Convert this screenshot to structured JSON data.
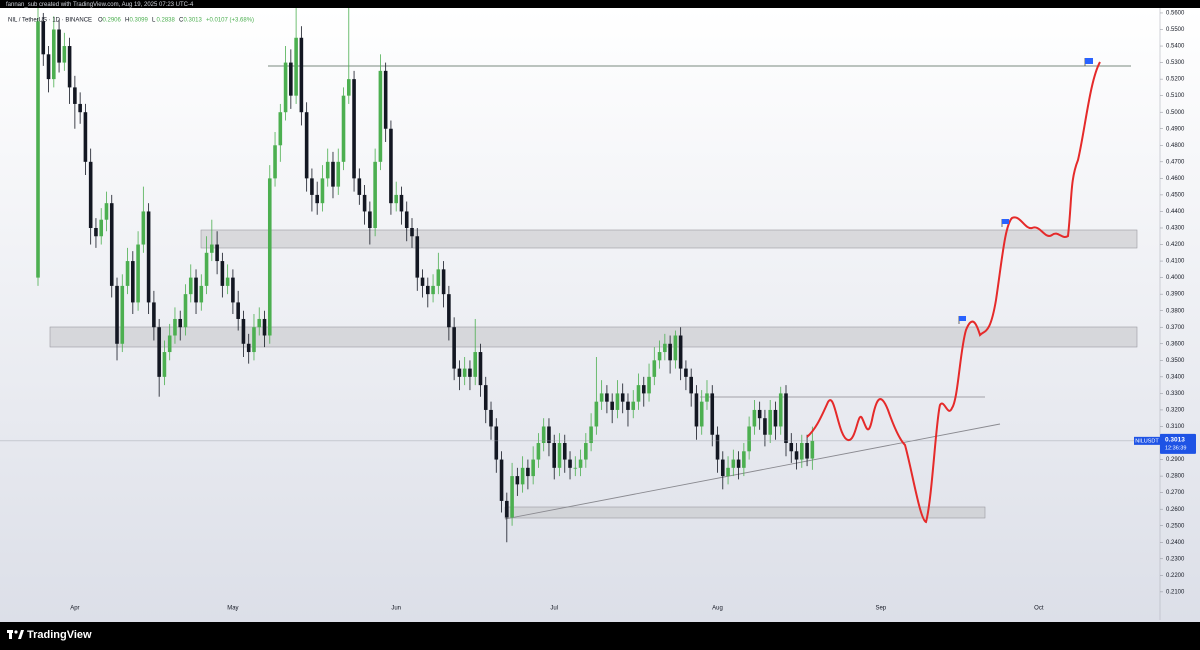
{
  "chart_data": {
    "type": "candlestick",
    "attribution": "fannan_sub created with TradingView.com, Aug 19, 2025 07:23 UTC-4",
    "symbol_title": "NIL / TetherUS · 1D · BINANCE",
    "ohlc_legend": [
      {
        "label": "O",
        "value": "0.2906"
      },
      {
        "label": "H",
        "value": "0.3099"
      },
      {
        "label": "L",
        "value": "0.2838"
      },
      {
        "label": "C",
        "value": "0.3013"
      }
    ],
    "change": "+0.0107 (+3.68%)",
    "price_tag": {
      "symbol": "NILUSDT",
      "price": "0.3013",
      "countdown": "12:36:39"
    },
    "brand": "TradingView",
    "up_color": "#4caf50",
    "down_color": "#131722",
    "grid": false,
    "ylim": [
      0.193,
      0.563
    ],
    "yticks": [
      {
        "value": 0.56,
        "label": "0.5600"
      },
      {
        "value": 0.55,
        "label": "0.5500"
      },
      {
        "value": 0.54,
        "label": "0.5400"
      },
      {
        "value": 0.53,
        "label": "0.5300"
      },
      {
        "value": 0.52,
        "label": "0.5200"
      },
      {
        "value": 0.51,
        "label": "0.5100"
      },
      {
        "value": 0.5,
        "label": "0.5000"
      },
      {
        "value": 0.49,
        "label": "0.4900"
      },
      {
        "value": 0.48,
        "label": "0.4800"
      },
      {
        "value": 0.47,
        "label": "0.4700"
      },
      {
        "value": 0.46,
        "label": "0.4600"
      },
      {
        "value": 0.45,
        "label": "0.4500"
      },
      {
        "value": 0.44,
        "label": "0.4400"
      },
      {
        "value": 0.43,
        "label": "0.4300"
      },
      {
        "value": 0.42,
        "label": "0.4200"
      },
      {
        "value": 0.41,
        "label": "0.4100"
      },
      {
        "value": 0.4,
        "label": "0.4000"
      },
      {
        "value": 0.39,
        "label": "0.3900"
      },
      {
        "value": 0.38,
        "label": "0.3800"
      },
      {
        "value": 0.37,
        "label": "0.3700"
      },
      {
        "value": 0.36,
        "label": "0.3600"
      },
      {
        "value": 0.35,
        "label": "0.3500"
      },
      {
        "value": 0.34,
        "label": "0.3400"
      },
      {
        "value": 0.33,
        "label": "0.3300"
      },
      {
        "value": 0.32,
        "label": "0.3200"
      },
      {
        "value": 0.31,
        "label": "0.3100"
      },
      {
        "value": 0.3,
        "label": "0.3000"
      },
      {
        "value": 0.29,
        "label": "0.2900"
      },
      {
        "value": 0.28,
        "label": "0.2800"
      },
      {
        "value": 0.27,
        "label": "0.2700"
      },
      {
        "value": 0.26,
        "label": "0.2600"
      },
      {
        "value": 0.25,
        "label": "0.2500"
      },
      {
        "value": 0.24,
        "label": "0.2400"
      },
      {
        "value": 0.23,
        "label": "0.2300"
      },
      {
        "value": 0.22,
        "label": "0.2200"
      },
      {
        "value": 0.21,
        "label": "0.2100"
      }
    ],
    "categories": [
      null,
      null,
      null,
      null,
      null,
      null,
      null,
      "Apr",
      null,
      null,
      null,
      null,
      null,
      null,
      null,
      null,
      null,
      null,
      null,
      null,
      null,
      null,
      null,
      null,
      null,
      null,
      null,
      null,
      null,
      null,
      null,
      null,
      null,
      null,
      null,
      null,
      null,
      "May",
      null,
      null,
      null,
      null,
      null,
      null,
      null,
      null,
      null,
      null,
      null,
      null,
      null,
      null,
      null,
      null,
      null,
      null,
      null,
      null,
      null,
      null,
      null,
      null,
      null,
      null,
      null,
      null,
      null,
      null,
      "Jun",
      null,
      null,
      null,
      null,
      null,
      null,
      null,
      null,
      null,
      null,
      null,
      null,
      null,
      null,
      null,
      null,
      null,
      null,
      null,
      null,
      null,
      null,
      null,
      null,
      null,
      null,
      null,
      null,
      null,
      "Jul",
      null,
      null,
      null,
      null,
      null,
      null,
      null,
      null,
      null,
      null,
      null,
      null,
      null,
      null,
      null,
      null,
      null,
      null,
      null,
      null,
      null,
      null,
      null,
      null,
      null,
      null,
      null,
      null,
      null,
      null,
      "Aug",
      null,
      null,
      null,
      null,
      null,
      null,
      null,
      null,
      null,
      null,
      null,
      null,
      null,
      null,
      null,
      null,
      null,
      null,
      null,
      null,
      null,
      null,
      null,
      null,
      null,
      null,
      null,
      null,
      null,
      null,
      "Sep",
      null,
      null,
      null,
      null,
      null,
      null,
      null,
      null,
      null,
      null,
      null,
      null,
      null,
      null,
      null,
      null,
      null,
      null,
      null,
      null,
      null,
      null,
      null,
      null,
      null,
      null,
      null,
      null,
      null,
      "Oct",
      null,
      null,
      null,
      null,
      null,
      null,
      null,
      null,
      null,
      null,
      null,
      null,
      null,
      null,
      null,
      null,
      null,
      null,
      null,
      null,
      null,
      null,
      null
    ],
    "candles": [
      [
        0.4,
        0.563,
        0.395,
        0.555
      ],
      [
        0.555,
        0.56,
        0.528,
        0.535
      ],
      [
        0.535,
        0.54,
        0.512,
        0.52
      ],
      [
        0.52,
        0.558,
        0.515,
        0.55
      ],
      [
        0.55,
        0.556,
        0.524,
        0.53
      ],
      [
        0.53,
        0.548,
        0.525,
        0.54
      ],
      [
        0.54,
        0.545,
        0.505,
        0.515
      ],
      [
        0.515,
        0.522,
        0.49,
        0.505
      ],
      [
        0.505,
        0.512,
        0.493,
        0.5
      ],
      [
        0.5,
        0.505,
        0.462,
        0.47
      ],
      [
        0.47,
        0.478,
        0.42,
        0.43
      ],
      [
        0.43,
        0.436,
        0.418,
        0.425
      ],
      [
        0.425,
        0.442,
        0.42,
        0.435
      ],
      [
        0.435,
        0.452,
        0.428,
        0.445
      ],
      [
        0.445,
        0.45,
        0.388,
        0.395
      ],
      [
        0.395,
        0.4,
        0.35,
        0.36
      ],
      [
        0.36,
        0.402,
        0.355,
        0.395
      ],
      [
        0.395,
        0.418,
        0.39,
        0.41
      ],
      [
        0.41,
        0.416,
        0.378,
        0.385
      ],
      [
        0.385,
        0.428,
        0.38,
        0.42
      ],
      [
        0.42,
        0.455,
        0.415,
        0.44
      ],
      [
        0.44,
        0.445,
        0.378,
        0.385
      ],
      [
        0.385,
        0.392,
        0.362,
        0.37
      ],
      [
        0.37,
        0.375,
        0.328,
        0.34
      ],
      [
        0.34,
        0.362,
        0.335,
        0.355
      ],
      [
        0.355,
        0.372,
        0.35,
        0.365
      ],
      [
        0.365,
        0.382,
        0.36,
        0.375
      ],
      [
        0.375,
        0.38,
        0.362,
        0.37
      ],
      [
        0.37,
        0.396,
        0.365,
        0.39
      ],
      [
        0.39,
        0.408,
        0.385,
        0.4
      ],
      [
        0.4,
        0.405,
        0.378,
        0.385
      ],
      [
        0.385,
        0.402,
        0.38,
        0.395
      ],
      [
        0.395,
        0.425,
        0.39,
        0.415
      ],
      [
        0.415,
        0.435,
        0.41,
        0.42
      ],
      [
        0.42,
        0.428,
        0.402,
        0.41
      ],
      [
        0.41,
        0.415,
        0.388,
        0.395
      ],
      [
        0.395,
        0.408,
        0.39,
        0.4
      ],
      [
        0.4,
        0.405,
        0.378,
        0.385
      ],
      [
        0.385,
        0.392,
        0.368,
        0.375
      ],
      [
        0.375,
        0.38,
        0.352,
        0.36
      ],
      [
        0.36,
        0.366,
        0.348,
        0.355
      ],
      [
        0.355,
        0.378,
        0.35,
        0.37
      ],
      [
        0.37,
        0.382,
        0.365,
        0.375
      ],
      [
        0.375,
        0.38,
        0.358,
        0.365
      ],
      [
        0.365,
        0.468,
        0.36,
        0.46
      ],
      [
        0.46,
        0.488,
        0.455,
        0.48
      ],
      [
        0.48,
        0.505,
        0.47,
        0.5
      ],
      [
        0.5,
        0.54,
        0.495,
        0.53
      ],
      [
        0.53,
        0.538,
        0.502,
        0.51
      ],
      [
        0.51,
        0.563,
        0.505,
        0.545
      ],
      [
        0.545,
        0.552,
        0.492,
        0.5
      ],
      [
        0.5,
        0.506,
        0.452,
        0.46
      ],
      [
        0.46,
        0.466,
        0.44,
        0.45
      ],
      [
        0.45,
        0.458,
        0.438,
        0.445
      ],
      [
        0.445,
        0.468,
        0.44,
        0.46
      ],
      [
        0.46,
        0.478,
        0.455,
        0.47
      ],
      [
        0.47,
        0.476,
        0.448,
        0.455
      ],
      [
        0.455,
        0.478,
        0.45,
        0.47
      ],
      [
        0.47,
        0.515,
        0.465,
        0.51
      ],
      [
        0.51,
        0.563,
        0.505,
        0.52
      ],
      [
        0.52,
        0.525,
        0.452,
        0.46
      ],
      [
        0.46,
        0.466,
        0.444,
        0.45
      ],
      [
        0.45,
        0.456,
        0.432,
        0.44
      ],
      [
        0.44,
        0.446,
        0.42,
        0.43
      ],
      [
        0.43,
        0.478,
        0.425,
        0.47
      ],
      [
        0.47,
        0.535,
        0.465,
        0.525
      ],
      [
        0.525,
        0.53,
        0.482,
        0.49
      ],
      [
        0.49,
        0.495,
        0.438,
        0.445
      ],
      [
        0.445,
        0.458,
        0.44,
        0.45
      ],
      [
        0.45,
        0.455,
        0.432,
        0.44
      ],
      [
        0.44,
        0.446,
        0.422,
        0.43
      ],
      [
        0.43,
        0.436,
        0.418,
        0.425
      ],
      [
        0.425,
        0.43,
        0.392,
        0.4
      ],
      [
        0.4,
        0.405,
        0.388,
        0.395
      ],
      [
        0.395,
        0.4,
        0.382,
        0.39
      ],
      [
        0.39,
        0.402,
        0.385,
        0.395
      ],
      [
        0.395,
        0.415,
        0.39,
        0.405
      ],
      [
        0.405,
        0.41,
        0.382,
        0.39
      ],
      [
        0.39,
        0.395,
        0.362,
        0.37
      ],
      [
        0.37,
        0.376,
        0.338,
        0.345
      ],
      [
        0.345,
        0.35,
        0.332,
        0.34
      ],
      [
        0.34,
        0.352,
        0.335,
        0.345
      ],
      [
        0.345,
        0.35,
        0.332,
        0.34
      ],
      [
        0.34,
        0.375,
        0.335,
        0.355
      ],
      [
        0.355,
        0.36,
        0.328,
        0.335
      ],
      [
        0.335,
        0.34,
        0.312,
        0.32
      ],
      [
        0.32,
        0.325,
        0.302,
        0.31
      ],
      [
        0.31,
        0.315,
        0.282,
        0.29
      ],
      [
        0.29,
        0.295,
        0.258,
        0.265
      ],
      [
        0.265,
        0.27,
        0.24,
        0.255
      ],
      [
        0.255,
        0.288,
        0.25,
        0.28
      ],
      [
        0.28,
        0.285,
        0.268,
        0.275
      ],
      [
        0.275,
        0.292,
        0.27,
        0.285
      ],
      [
        0.285,
        0.29,
        0.272,
        0.28
      ],
      [
        0.28,
        0.298,
        0.275,
        0.29
      ],
      [
        0.29,
        0.306,
        0.285,
        0.3
      ],
      [
        0.3,
        0.315,
        0.295,
        0.31
      ],
      [
        0.31,
        0.315,
        0.292,
        0.3
      ],
      [
        0.3,
        0.305,
        0.278,
        0.285
      ],
      [
        0.285,
        0.306,
        0.28,
        0.3
      ],
      [
        0.3,
        0.305,
        0.282,
        0.29
      ],
      [
        0.29,
        0.295,
        0.278,
        0.285
      ],
      [
        0.285,
        0.292,
        0.28,
        0.285
      ],
      [
        0.285,
        0.296,
        0.28,
        0.29
      ],
      [
        0.29,
        0.306,
        0.285,
        0.3
      ],
      [
        0.3,
        0.318,
        0.295,
        0.31
      ],
      [
        0.31,
        0.352,
        0.305,
        0.325
      ],
      [
        0.325,
        0.338,
        0.32,
        0.33
      ],
      [
        0.33,
        0.335,
        0.318,
        0.325
      ],
      [
        0.325,
        0.33,
        0.312,
        0.32
      ],
      [
        0.32,
        0.338,
        0.315,
        0.33
      ],
      [
        0.33,
        0.336,
        0.318,
        0.325
      ],
      [
        0.325,
        0.33,
        0.31,
        0.32
      ],
      [
        0.32,
        0.332,
        0.315,
        0.325
      ],
      [
        0.325,
        0.342,
        0.32,
        0.335
      ],
      [
        0.335,
        0.34,
        0.322,
        0.33
      ],
      [
        0.33,
        0.348,
        0.325,
        0.34
      ],
      [
        0.34,
        0.358,
        0.335,
        0.35
      ],
      [
        0.35,
        0.362,
        0.345,
        0.355
      ],
      [
        0.355,
        0.366,
        0.35,
        0.36
      ],
      [
        0.36,
        0.365,
        0.342,
        0.35
      ],
      [
        0.35,
        0.368,
        0.345,
        0.365
      ],
      [
        0.365,
        0.37,
        0.338,
        0.345
      ],
      [
        0.345,
        0.35,
        0.332,
        0.34
      ],
      [
        0.34,
        0.345,
        0.322,
        0.33
      ],
      [
        0.33,
        0.335,
        0.302,
        0.31
      ],
      [
        0.31,
        0.332,
        0.305,
        0.325
      ],
      [
        0.325,
        0.338,
        0.32,
        0.33
      ],
      [
        0.33,
        0.335,
        0.298,
        0.305
      ],
      [
        0.305,
        0.31,
        0.282,
        0.29
      ],
      [
        0.29,
        0.295,
        0.272,
        0.28
      ],
      [
        0.28,
        0.292,
        0.275,
        0.285
      ],
      [
        0.285,
        0.296,
        0.28,
        0.29
      ],
      [
        0.29,
        0.295,
        0.278,
        0.285
      ],
      [
        0.285,
        0.3,
        0.28,
        0.295
      ],
      [
        0.295,
        0.316,
        0.29,
        0.31
      ],
      [
        0.31,
        0.326,
        0.305,
        0.32
      ],
      [
        0.32,
        0.325,
        0.308,
        0.315
      ],
      [
        0.315,
        0.32,
        0.298,
        0.305
      ],
      [
        0.305,
        0.326,
        0.3,
        0.32
      ],
      [
        0.32,
        0.325,
        0.302,
        0.31
      ],
      [
        0.31,
        0.334,
        0.305,
        0.33
      ],
      [
        0.33,
        0.335,
        0.292,
        0.3
      ],
      [
        0.3,
        0.306,
        0.288,
        0.295
      ],
      [
        0.295,
        0.3,
        0.284,
        0.29
      ],
      [
        0.29,
        0.305,
        0.285,
        0.3
      ],
      [
        0.3,
        0.305,
        0.286,
        0.2906
      ],
      [
        0.2906,
        0.3099,
        0.2838,
        0.3013
      ],
      null,
      null,
      null,
      null,
      null,
      null,
      null,
      null,
      null,
      null,
      null,
      null,
      null,
      null,
      null,
      null,
      null,
      null,
      null,
      null,
      null,
      null,
      null,
      null,
      null,
      null,
      null,
      null,
      null,
      null,
      null,
      null,
      null,
      null,
      null,
      null,
      null,
      null,
      null,
      null,
      null,
      null,
      null,
      null,
      null,
      null,
      null,
      null,
      null,
      null,
      null,
      null,
      null,
      null,
      null,
      null,
      null,
      null,
      null,
      null,
      null,
      null,
      null,
      null,
      null,
      null
    ]
  }
}
